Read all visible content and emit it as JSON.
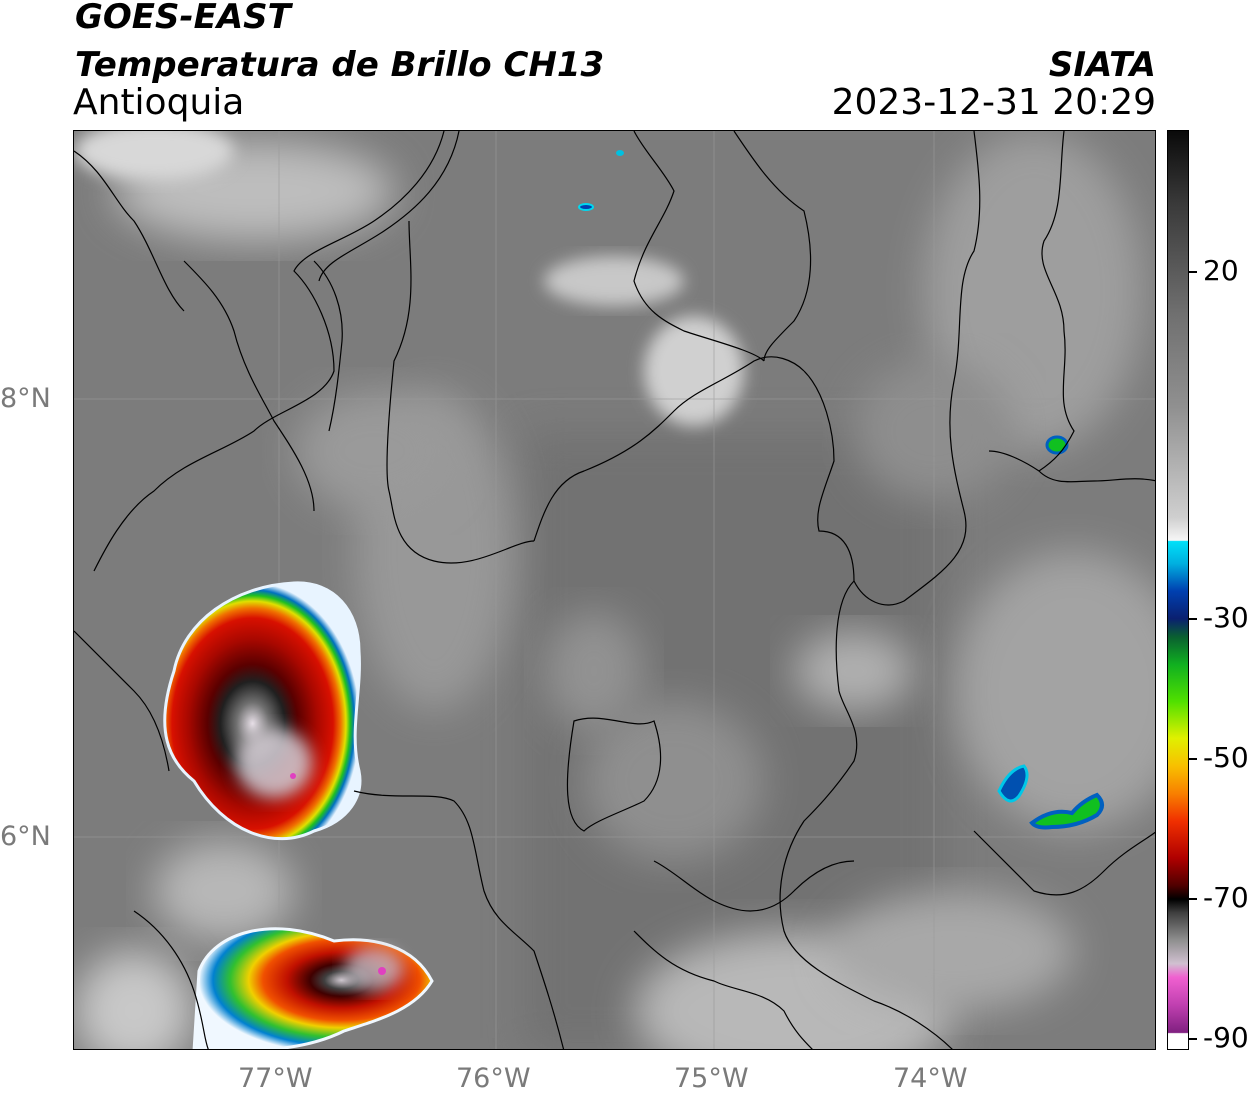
{
  "header": {
    "satellite": "GOES-EAST",
    "product": "Temperatura de Brillo CH13",
    "region": "Antioquia",
    "brand": "SIATA",
    "datetime": "2023-12-31 20:29"
  },
  "map": {
    "lat_ticks": [
      "8°N",
      "6°N"
    ],
    "lon_ticks": [
      "77°W",
      "76°W",
      "75°W",
      "74°W"
    ],
    "gridlines": true
  },
  "colorbar": {
    "tick_labels": [
      "20",
      "-30",
      "-50",
      "-70",
      "-90"
    ],
    "colors": {
      "warm_top": "#111111",
      "warm_mid": "#8c8c8c",
      "warm_low": "#f4f4f4",
      "cyan": "#00d8f0",
      "blue": "#0a2a9a",
      "green": "#10c020",
      "yellow": "#f8e000",
      "orange": "#f89000",
      "red": "#e01000",
      "darkred": "#600000",
      "black": "#000000",
      "grey_cold": "#c0b8c0",
      "magenta": "#e040c0",
      "purple": "#802080"
    }
  }
}
